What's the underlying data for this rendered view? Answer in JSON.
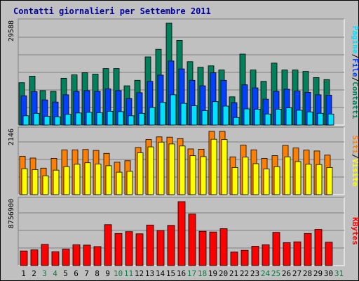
{
  "title": "Contatti giornalieri per Settembre 2011",
  "colors": {
    "pagine": "#00e0ff",
    "file": "#0040ff",
    "contatti": "#00805c",
    "siti": "#ffff00",
    "visite": "#ff8000",
    "kbytes": "#ff0000",
    "weekday_label": "#000000",
    "weekend_label": "#008040"
  },
  "chart_data": [
    {
      "type": "bar",
      "panel": "hits",
      "ytick_label": "29588",
      "ylim": [
        0,
        29588
      ],
      "right_labels": [
        {
          "text": "Pagine",
          "color": "#00e0ff"
        },
        {
          "text": "/",
          "color": "#000000"
        },
        {
          "text": "File",
          "color": "#0040ff"
        },
        {
          "text": "/",
          "color": "#000000"
        },
        {
          "text": "Contatti",
          "color": "#00805c"
        }
      ],
      "categories": [
        "1",
        "2",
        "3",
        "4",
        "5",
        "6",
        "7",
        "8",
        "9",
        "10",
        "11",
        "12",
        "13",
        "14",
        "15",
        "16",
        "17",
        "18",
        "19",
        "20",
        "21",
        "22",
        "23",
        "24",
        "25",
        "26",
        "27",
        "28",
        "29",
        "30",
        "31"
      ],
      "series": [
        {
          "name": "Contatti",
          "color": "#00805c",
          "values": [
            12300,
            14200,
            10000,
            9800,
            13600,
            14600,
            15200,
            14800,
            16400,
            16400,
            11400,
            13000,
            19800,
            22000,
            29588,
            24600,
            18400,
            16800,
            17200,
            16000,
            8200,
            20600,
            16000,
            12700,
            18000,
            16000,
            16000,
            15600,
            13800,
            13200,
            0
          ]
        },
        {
          "name": "File",
          "color": "#0040ff",
          "values": [
            8500,
            9700,
            7300,
            6700,
            8800,
            9800,
            10000,
            9800,
            10500,
            10000,
            7700,
            9400,
            12700,
            14500,
            18600,
            16300,
            13000,
            11400,
            15200,
            13000,
            6500,
            11700,
            10800,
            7500,
            9800,
            10400,
            9900,
            9500,
            8800,
            8700,
            0
          ]
        },
        {
          "name": "Pagine",
          "color": "#00e0ff",
          "values": [
            2700,
            3400,
            2500,
            2400,
            3100,
            3500,
            3700,
            3600,
            4000,
            3900,
            2700,
            3400,
            5100,
            6600,
            8800,
            6300,
            5600,
            4200,
            6800,
            5500,
            2200,
            4700,
            4600,
            3200,
            4600,
            5000,
            4300,
            3800,
            3400,
            3200,
            0
          ]
        }
      ]
    },
    {
      "type": "bar",
      "panel": "visits",
      "ytick_label": "2146",
      "ylim": [
        0,
        2146
      ],
      "right_labels": [
        {
          "text": "Siti",
          "color": "#ff8000"
        },
        {
          "text": "/",
          "color": "#000000"
        },
        {
          "text": "Visite",
          "color": "#ffff00"
        }
      ],
      "categories": [
        "1",
        "2",
        "3",
        "4",
        "5",
        "6",
        "7",
        "8",
        "9",
        "10",
        "11",
        "12",
        "13",
        "14",
        "15",
        "16",
        "17",
        "18",
        "19",
        "20",
        "21",
        "22",
        "23",
        "24",
        "25",
        "26",
        "27",
        "28",
        "29",
        "30",
        "31"
      ],
      "series": [
        {
          "name": "Visite",
          "color": "#ff8000",
          "values": [
            1300,
            1240,
            900,
            1230,
            1520,
            1520,
            1530,
            1500,
            1400,
            1100,
            1150,
            1600,
            1870,
            1960,
            1950,
            1900,
            1550,
            1540,
            2146,
            2146,
            1280,
            1680,
            1520,
            1230,
            1320,
            1670,
            1580,
            1510,
            1480,
            1340,
            0
          ]
        },
        {
          "name": "Siti",
          "color": "#ffff00",
          "values": [
            880,
            850,
            640,
            830,
            950,
            1030,
            1080,
            1040,
            980,
            760,
            790,
            1420,
            1620,
            1780,
            1720,
            1650,
            1320,
            1290,
            1880,
            1870,
            920,
            1270,
            1050,
            870,
            950,
            1280,
            1120,
            1030,
            1020,
            920,
            0
          ]
        }
      ]
    },
    {
      "type": "bar",
      "panel": "kbytes",
      "ytick_label": "8756900",
      "ylim": [
        0,
        8756900
      ],
      "right_labels": [
        {
          "text": "KBytes",
          "color": "#ff0000"
        }
      ],
      "categories": [
        "1",
        "2",
        "3",
        "4",
        "5",
        "6",
        "7",
        "8",
        "9",
        "10",
        "11",
        "12",
        "13",
        "14",
        "15",
        "16",
        "17",
        "18",
        "19",
        "20",
        "21",
        "22",
        "23",
        "24",
        "25",
        "26",
        "27",
        "28",
        "29",
        "30",
        "31"
      ],
      "series": [
        {
          "name": "KBytes",
          "color": "#ff0000",
          "values": [
            2000000,
            2150000,
            2900000,
            1900000,
            2250000,
            2850000,
            2800000,
            2600000,
            5600000,
            4400000,
            4650000,
            4350000,
            5550000,
            4800000,
            5500000,
            8756900,
            7050000,
            4700000,
            4600000,
            5050000,
            1850000,
            2100000,
            2650000,
            2850000,
            4550000,
            3150000,
            3250000,
            4400000,
            4950000,
            3200000,
            0
          ]
        }
      ]
    }
  ],
  "x_axis": {
    "labels": [
      "1",
      "2",
      "3",
      "4",
      "5",
      "6",
      "7",
      "8",
      "9",
      "10",
      "11",
      "12",
      "13",
      "14",
      "15",
      "16",
      "17",
      "18",
      "19",
      "20",
      "21",
      "22",
      "23",
      "24",
      "25",
      "26",
      "27",
      "28",
      "29",
      "30",
      "31"
    ],
    "weekend": [
      "3",
      "4",
      "10",
      "11",
      "17",
      "18",
      "24",
      "25",
      "31"
    ]
  }
}
